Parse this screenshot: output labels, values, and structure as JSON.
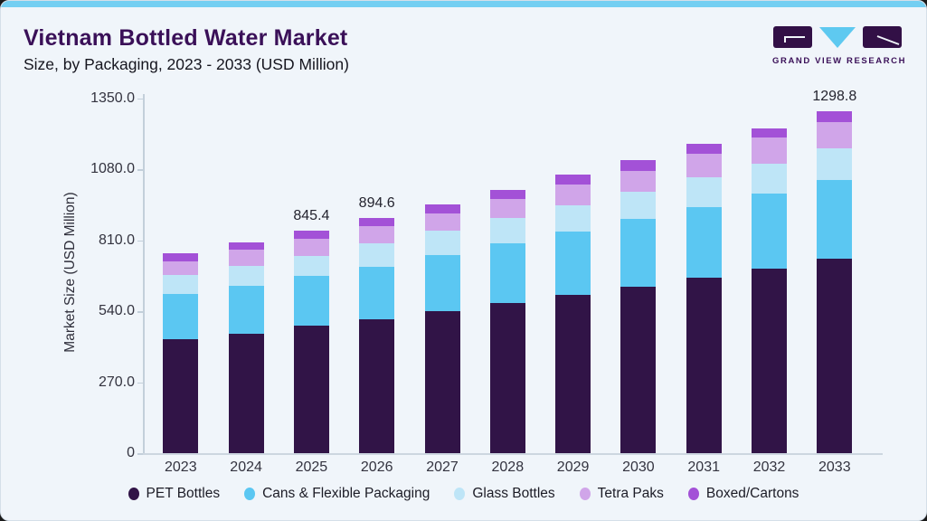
{
  "theme": {
    "card_background": "#f0f5fa",
    "top_strip_color": "#74cff2",
    "title_color": "#3a1058",
    "axis_line_color": "#c3cfda",
    "text_color": "#33333f"
  },
  "header": {
    "title": "Vietnam Bottled Water Market",
    "subtitle": "Size, by Packaging, 2023 - 2033 (USD Million)"
  },
  "logo": {
    "text": "GRAND VIEW RESEARCH",
    "mark_color": "#321046",
    "triangle_color": "#5ec9f0"
  },
  "chart_data": {
    "type": "bar",
    "stacked": true,
    "title": "Vietnam Bottled Water Market Size, by Packaging, 2023 - 2033 (USD Million)",
    "xlabel": "",
    "ylabel": "Market Size (USD Million)",
    "ylim": [
      0,
      1350
    ],
    "grid": false,
    "legend_position": "bottom",
    "yticks": [
      0,
      270,
      540,
      810,
      1080,
      1350
    ],
    "ytick_labels": [
      "0",
      "270.0",
      "540.0",
      "810.0",
      "1080.0",
      "1350.0"
    ],
    "categories": [
      "2023",
      "2024",
      "2025",
      "2026",
      "2027",
      "2028",
      "2029",
      "2030",
      "2031",
      "2032",
      "2033"
    ],
    "series": [
      {
        "name": "PET Bottles",
        "color": "#311447",
        "values": [
          432,
          453,
          484.4,
          509.6,
          539,
          570,
          602,
          634,
          668,
          702,
          739
        ]
      },
      {
        "name": "Cans & Flexible Packaging",
        "color": "#5bc7f2",
        "values": [
          172,
          183,
          189,
          199,
          214,
          229,
          241,
          257,
          268,
          287,
          301
        ]
      },
      {
        "name": "Glass Bottles",
        "color": "#bee5f7",
        "values": [
          72,
          75,
          78,
          90,
          92,
          95,
          100,
          103,
          113,
          113,
          121
        ]
      },
      {
        "name": "Tetra Paks",
        "color": "#d0a5e9",
        "values": [
          54,
          62,
          63,
          64,
          66,
          72,
          78,
          80,
          89,
          97,
          97.6
        ]
      },
      {
        "name": "Boxed/Cartons",
        "color": "#a351d7",
        "values": [
          29,
          29,
          31,
          32,
          34,
          34,
          37,
          40,
          37,
          37,
          40.2
        ]
      }
    ],
    "totals": [
      759,
      802,
      845.4,
      894.6,
      945,
      1000,
      1058,
      1114,
      1175,
      1236,
      1298.8
    ],
    "total_labels": {
      "2025": "845.4",
      "2026": "894.6",
      "2033": "1298.8"
    }
  }
}
